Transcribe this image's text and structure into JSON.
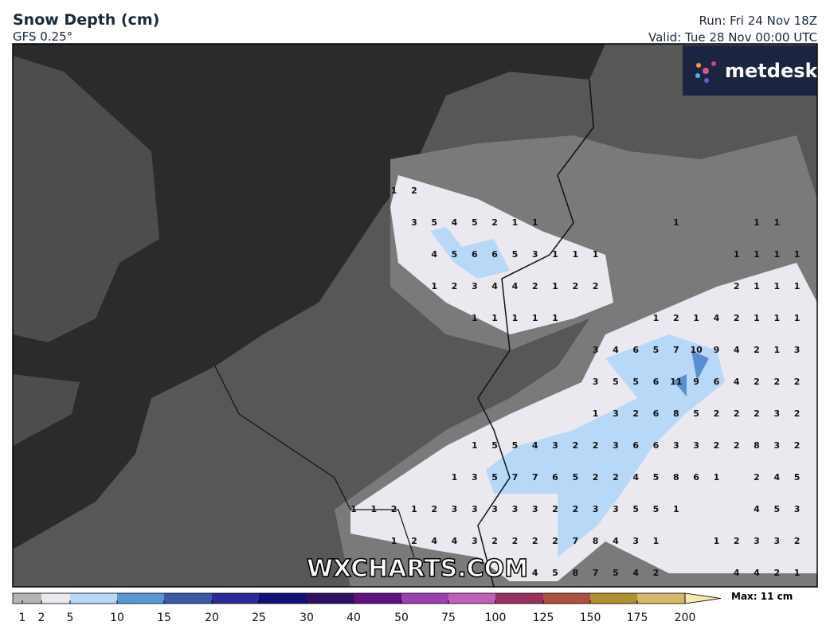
{
  "header": {
    "title": "Snow Depth (cm)",
    "model": "GFS 0.25°",
    "run": "Run: Fri 24 Nov 18Z",
    "valid": "Valid: Tue 28 Nov 00:00 UTC"
  },
  "logo": "metdesk",
  "watermark": "WXCHARTS.COM",
  "map": {
    "grid_rows": [
      [
        null,
        null,
        1,
        2,
        null,
        null,
        null,
        null,
        null,
        null,
        null,
        null,
        null,
        null,
        null,
        null,
        null,
        null,
        null,
        null,
        null,
        null,
        null
      ],
      [
        null,
        null,
        null,
        3,
        5,
        4,
        5,
        2,
        1,
        1,
        null,
        null,
        null,
        null,
        null,
        null,
        1,
        null,
        null,
        null,
        1,
        1,
        null
      ],
      [
        null,
        null,
        null,
        null,
        4,
        5,
        6,
        6,
        5,
        3,
        1,
        1,
        1,
        null,
        null,
        null,
        null,
        null,
        null,
        1,
        1,
        1,
        1
      ],
      [
        null,
        null,
        null,
        null,
        1,
        2,
        3,
        4,
        4,
        2,
        1,
        2,
        2,
        null,
        null,
        null,
        null,
        null,
        null,
        2,
        1,
        1,
        1
      ],
      [
        null,
        null,
        null,
        null,
        null,
        null,
        1,
        1,
        1,
        1,
        1,
        null,
        null,
        null,
        null,
        1,
        2,
        1,
        4,
        2,
        1,
        1,
        1
      ],
      [
        null,
        null,
        null,
        null,
        null,
        null,
        null,
        null,
        null,
        null,
        null,
        null,
        3,
        4,
        6,
        5,
        7,
        10,
        9,
        4,
        2,
        1,
        3
      ],
      [
        null,
        null,
        null,
        null,
        null,
        null,
        null,
        null,
        null,
        null,
        null,
        null,
        3,
        5,
        5,
        6,
        11,
        9,
        6,
        4,
        2,
        2,
        2
      ],
      [
        null,
        null,
        null,
        null,
        null,
        null,
        null,
        null,
        null,
        null,
        null,
        null,
        1,
        3,
        2,
        6,
        8,
        5,
        2,
        2,
        2,
        3,
        2
      ],
      [
        null,
        null,
        null,
        null,
        null,
        null,
        1,
        5,
        5,
        4,
        3,
        2,
        2,
        3,
        6,
        6,
        3,
        3,
        2,
        2,
        8,
        3,
        2
      ],
      [
        null,
        null,
        null,
        null,
        null,
        1,
        3,
        5,
        7,
        7,
        6,
        5,
        2,
        2,
        4,
        5,
        8,
        6,
        1,
        null,
        2,
        4,
        5
      ],
      [
        1,
        1,
        2,
        1,
        2,
        3,
        3,
        3,
        3,
        3,
        2,
        2,
        3,
        3,
        5,
        5,
        1,
        null,
        null,
        null,
        4,
        5,
        3
      ],
      [
        null,
        null,
        1,
        2,
        4,
        4,
        3,
        2,
        2,
        2,
        2,
        7,
        8,
        4,
        3,
        1,
        null,
        null,
        1,
        2,
        3,
        3,
        2
      ],
      [
        null,
        null,
        null,
        null,
        null,
        null,
        null,
        null,
        null,
        4,
        5,
        8,
        7,
        5,
        4,
        2,
        null,
        null,
        null,
        4,
        4,
        2,
        1
      ]
    ]
  },
  "legend": {
    "ticks": [
      1,
      2,
      5,
      10,
      15,
      20,
      25,
      30,
      40,
      50,
      75,
      100,
      125,
      150,
      175,
      200
    ],
    "colors": [
      "#b4b4b4",
      "#ece8f0",
      "#b8d8f8",
      "#5a96d4",
      "#3a5aa8",
      "#2a2a98",
      "#14107a",
      "#301060",
      "#601080",
      "#9a40b0",
      "#c060b8",
      "#9a3060",
      "#b05040",
      "#b09030",
      "#d8b868",
      "#f8e8b0"
    ],
    "max_label": "Max: 11 cm"
  }
}
